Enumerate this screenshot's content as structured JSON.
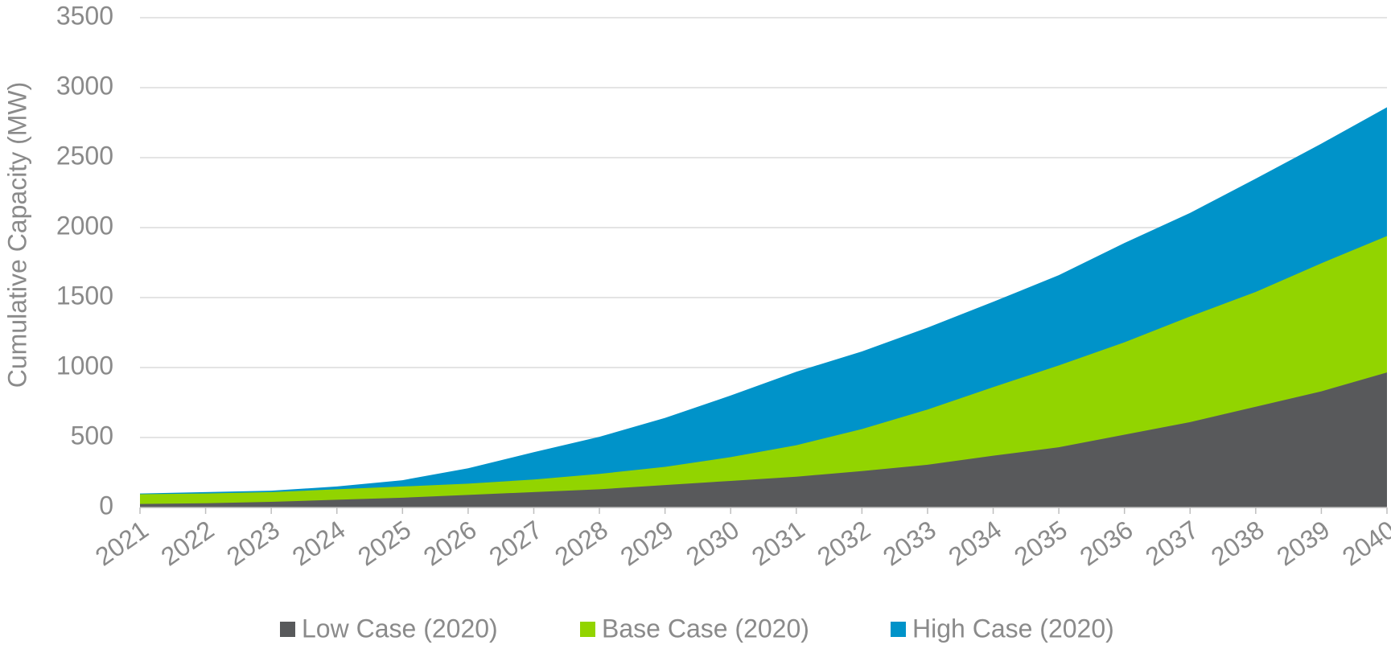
{
  "chart_data": {
    "type": "area",
    "y_label": "Cumulative Capacity (MW)",
    "categories": [
      "2021",
      "2022",
      "2023",
      "2024",
      "2025",
      "2026",
      "2027",
      "2028",
      "2029",
      "2030",
      "2031",
      "2032",
      "2033",
      "2034",
      "2035",
      "2036",
      "2037",
      "2038",
      "2039",
      "2040"
    ],
    "series": [
      {
        "name": "Low Case (2020)",
        "color": "#58595b",
        "values": [
          25,
          30,
          40,
          55,
          70,
          90,
          110,
          130,
          160,
          190,
          220,
          260,
          305,
          370,
          430,
          520,
          610,
          720,
          830,
          965
        ]
      },
      {
        "name": "Base Case (2020)",
        "color": "#92d400",
        "values": [
          95,
          100,
          110,
          130,
          150,
          170,
          200,
          240,
          290,
          360,
          445,
          560,
          700,
          860,
          1015,
          1180,
          1365,
          1540,
          1745,
          1940
        ]
      },
      {
        "name": "High Case (2020)",
        "color": "#0093c9",
        "values": [
          100,
          110,
          120,
          150,
          195,
          280,
          395,
          505,
          640,
          800,
          970,
          1115,
          1285,
          1470,
          1660,
          1890,
          2105,
          2350,
          2600,
          2860
        ]
      }
    ],
    "ylim": [
      0,
      3500
    ],
    "yticks": [
      0,
      500,
      1000,
      1500,
      2000,
      2500,
      3000,
      3500
    ],
    "grid": true,
    "legend": "bottom"
  }
}
